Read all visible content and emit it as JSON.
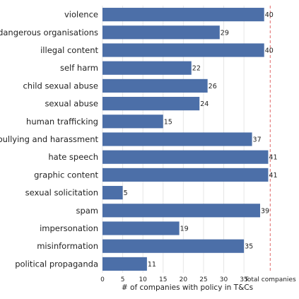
{
  "chart_data": {
    "type": "bar",
    "orientation": "horizontal",
    "categories": [
      "violence",
      "dangerous organisations",
      "illegal content",
      "self harm",
      "child sexual abuse",
      "sexual abuse",
      "human trafficking",
      "bullying and harassment",
      "hate speech",
      "graphic content",
      "sexual solicitation",
      "spam",
      "impersonation",
      "misinformation",
      "political propaganda"
    ],
    "values": [
      40,
      29,
      40,
      22,
      26,
      24,
      15,
      37,
      41,
      41,
      5,
      39,
      19,
      35,
      11
    ],
    "xlabel": "# of companies with policy in T&Cs",
    "ylabel": "",
    "xlim": [
      0,
      42.5
    ],
    "xticks": [
      0,
      5,
      10,
      15,
      20,
      25,
      30,
      35
    ],
    "xtick_labels": [
      "0",
      "5",
      "10",
      "15",
      "20",
      "25",
      "30",
      "35"
    ],
    "total_line": {
      "value": 41.5,
      "label": "Total companies",
      "style": "dashed",
      "color": "#e06666"
    },
    "bar_color": "#4c6fa8",
    "grid": true,
    "grid_axis": "x",
    "legend": "none"
  }
}
